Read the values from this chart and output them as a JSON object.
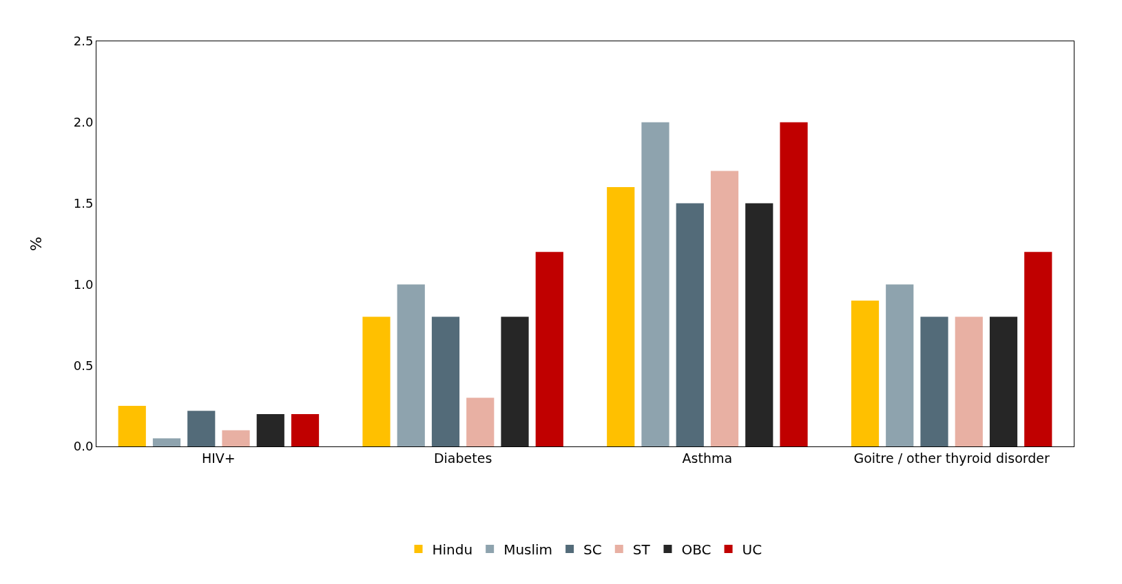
{
  "chart_data": {
    "type": "bar",
    "ylabel": "%",
    "categories": [
      "HIV+",
      "Diabetes",
      "Asthma",
      "Goitre / other thyroid disorder"
    ],
    "series": [
      {
        "name": "Hindu",
        "color": "#ffc000",
        "values": [
          0.25,
          0.8,
          1.6,
          0.9
        ]
      },
      {
        "name": "Muslim",
        "color": "#8ea3ae",
        "values": [
          0.05,
          1.0,
          2.0,
          1.0
        ]
      },
      {
        "name": "SC",
        "color": "#536b79",
        "values": [
          0.22,
          0.8,
          1.5,
          0.8
        ]
      },
      {
        "name": "ST",
        "color": "#e8b0a3",
        "values": [
          0.1,
          0.3,
          1.7,
          0.8
        ]
      },
      {
        "name": "OBC",
        "color": "#262626",
        "values": [
          0.2,
          0.8,
          1.5,
          0.8
        ]
      },
      {
        "name": "UC",
        "color": "#c00000",
        "values": [
          0.2,
          1.2,
          2.0,
          1.2
        ]
      }
    ],
    "ylim": [
      0,
      2.5
    ],
    "yticks": [
      {
        "value": 0,
        "label": "0.0"
      },
      {
        "value": 0.5,
        "label": "0.5"
      },
      {
        "value": 1,
        "label": "1.0"
      },
      {
        "value": 1.5,
        "label": "1.5"
      },
      {
        "value": 2,
        "label": "2.0"
      },
      {
        "value": 2.5,
        "label": "2.5"
      }
    ],
    "legend": "bottom"
  }
}
